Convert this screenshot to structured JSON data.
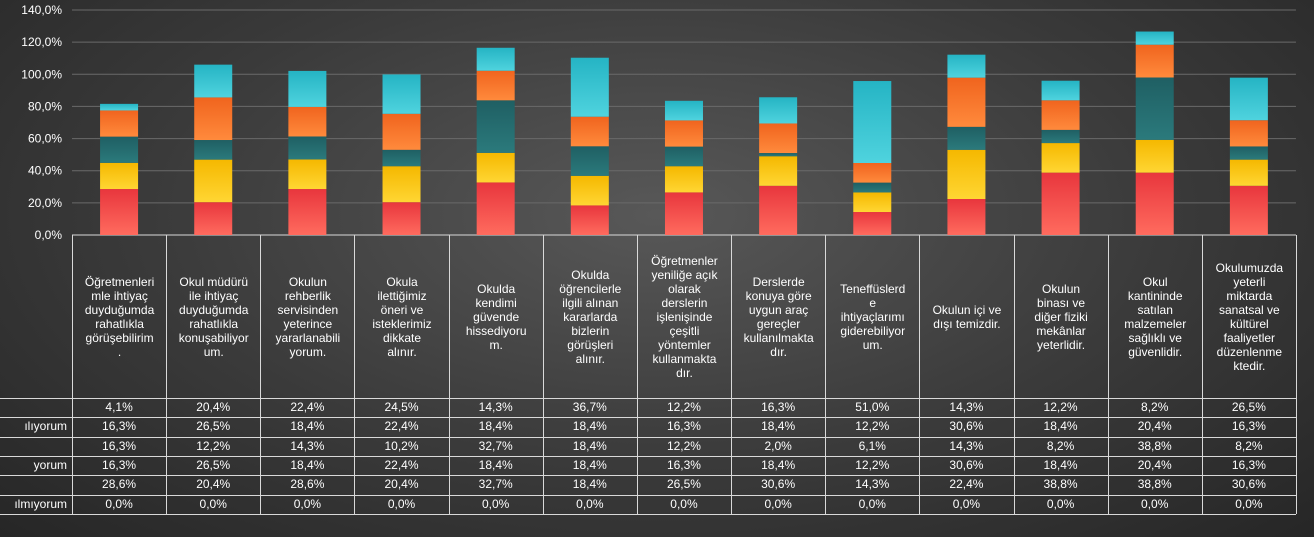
{
  "chart_data": {
    "type": "bar",
    "stacked": true,
    "ylim": [
      0,
      140
    ],
    "yticks": [
      "0,0%",
      "20,0%",
      "40,0%",
      "60,0%",
      "80,0%",
      "100,0%",
      "120,0%",
      "140,0%"
    ],
    "categories": [
      "Öğretmenlerimle ihtiyaç duyduğumda rahatlıkla görüşebilirim.",
      "Okul müdürü ile ihtiyaç duyduğumda rahatlıkla konuşabiliyorum.",
      "Okulun rehberlik servisinden yeterince yararlanabiliyorum.",
      "Okula ilettiğimiz öneri ve isteklerimiz dikkate alınır.",
      "Okulda kendimi güvende hissediyorum.",
      "Okulda öğrencilerle ilgili alınan kararlarda bizlerin görüşleri alınır.",
      "Öğretmenler yeniliğe açık olarak derslerin işlenişinde çeşitli yöntemler kullanmaktadır.",
      "Derslerde konuya göre uygun araç gereçler kullanılmaktadır.",
      "Teneffüslerde ihtiyaçlarımı giderebiliyorum.",
      "Okulun içi ve dışı temizdir.",
      "Okulun binası ve diğer fiziki mekânlar yeterlidir.",
      "Okul kantininde satılan malzemeler sağlıklı ve güvenlidir.",
      "Okulumuzda yeterli miktarda sanatsal ve kültürel faaliyetler düzenlenmektedir."
    ],
    "category_lines": [
      [
        "Öğretmenleri",
        "mle ihtiyaç",
        "duyduğumda",
        "rahatlıkla",
        "görüşebilirim",
        "."
      ],
      [
        "Okul müdürü",
        "ile ihtiyaç",
        "duyduğumda",
        "rahatlıkla",
        "konuşabiliyor",
        "um."
      ],
      [
        "Okulun",
        "rehberlik",
        "servisinden",
        "yeterince",
        "yararlanabili",
        "yorum."
      ],
      [
        "Okula",
        "ilettiğimiz",
        "öneri ve",
        "isteklerimiz",
        "dikkate",
        "alınır."
      ],
      [
        "Okulda",
        "kendimi",
        "güvende",
        "hissediyoru",
        "m."
      ],
      [
        "Okulda",
        "öğrencilerle",
        "ilgili alınan",
        "kararlarda",
        "bizlerin",
        "görüşleri",
        "alınır."
      ],
      [
        "Öğretmenler",
        "yeniliğe açık",
        "olarak",
        "derslerin",
        "işlenişinde",
        "çeşitli",
        "yöntemler",
        "kullanmakta",
        "dır."
      ],
      [
        "Derslerde",
        "konuya göre",
        "uygun araç",
        "gereçler",
        "kullanılmakta",
        "dır."
      ],
      [
        "Teneffüslerd",
        "e",
        "ihtiyaçlarımı",
        "giderebiliyor",
        "um."
      ],
      [
        "Okulun içi ve",
        "dışı temizdir."
      ],
      [
        "Okulun",
        "binası ve",
        "diğer fiziki",
        "mekânlar",
        "yeterlidir."
      ],
      [
        "Okul",
        "kantininde",
        "satılan",
        "malzemeler",
        "sağlıklı ve",
        "güvenlidir."
      ],
      [
        "Okulumuzda",
        "yeterli",
        "miktarda",
        "sanatsal ve",
        "kültürel",
        "faaliyetler",
        "düzenlenme",
        "ktedir."
      ]
    ],
    "series": [
      {
        "name": "",
        "row_label": "",
        "color": "#e8363d",
        "color_light": "#ff6b5e",
        "values": [
          28.6,
          20.4,
          28.6,
          20.4,
          32.7,
          18.4,
          26.5,
          30.6,
          14.3,
          22.4,
          38.8,
          38.8,
          30.6
        ],
        "labels": [
          "28,6%",
          "20,4%",
          "28,6%",
          "20,4%",
          "32,7%",
          "18,4%",
          "26,5%",
          "30,6%",
          "14,3%",
          "22,4%",
          "38,8%",
          "38,8%",
          "30,6%"
        ]
      },
      {
        "name": "",
        "row_label": "",
        "color": "#f5b800",
        "color_light": "#ffd633",
        "values": [
          16.3,
          26.5,
          18.4,
          22.4,
          18.4,
          18.4,
          16.3,
          18.4,
          12.2,
          30.6,
          18.4,
          20.4,
          16.3
        ],
        "labels": [
          "16,3%",
          "26,5%",
          "18,4%",
          "22,4%",
          "18,4%",
          "18,4%",
          "16,3%",
          "18,4%",
          "12,2%",
          "30,6%",
          "18,4%",
          "20,4%",
          "16,3%"
        ]
      },
      {
        "name": "",
        "row_label": "",
        "color": "#1f5f63",
        "color_light": "#2b7a7c",
        "values": [
          16.3,
          12.2,
          14.3,
          10.2,
          32.7,
          18.4,
          12.2,
          2.0,
          6.1,
          14.3,
          8.2,
          38.8,
          8.2
        ],
        "labels": [
          "16,3%",
          "12,2%",
          "14,3%",
          "10,2%",
          "32,7%",
          "18,4%",
          "12,2%",
          "2,0%",
          "6,1%",
          "14,3%",
          "8,2%",
          "38,8%",
          "8,2%"
        ]
      },
      {
        "name": "",
        "row_label": "",
        "color": "#f0641e",
        "color_light": "#ff8a3c",
        "values": [
          16.3,
          26.5,
          18.4,
          22.4,
          18.4,
          18.4,
          16.3,
          18.4,
          12.2,
          30.6,
          18.4,
          20.4,
          16.3
        ],
        "labels": [
          "16,3%",
          "26,5%",
          "18,4%",
          "22,4%",
          "18,4%",
          "18,4%",
          "16,3%",
          "18,4%",
          "12,2%",
          "30,6%",
          "18,4%",
          "20,4%",
          "16,3%"
        ]
      },
      {
        "name": "",
        "row_label": "",
        "color": "#25b4c4",
        "color_light": "#4fd3de",
        "values": [
          4.1,
          20.4,
          22.4,
          24.5,
          14.3,
          36.7,
          12.2,
          16.3,
          51.0,
          14.3,
          12.2,
          8.2,
          26.5
        ],
        "labels": [
          "4,1%",
          "20,4%",
          "22,4%",
          "24,5%",
          "14,3%",
          "36,7%",
          "12,2%",
          "16,3%",
          "51,0%",
          "14,3%",
          "12,2%",
          "8,2%",
          "26,5%"
        ]
      }
    ],
    "table_rows": [
      {
        "row_label": "",
        "series_index": 4
      },
      {
        "row_label": "ılıyorum",
        "series_index": 3
      },
      {
        "row_label": "",
        "series_index": 2
      },
      {
        "row_label": "yorum",
        "series_index": 1
      },
      {
        "row_label": "",
        "series_index": 0
      },
      {
        "row_label": "ılmıyorum",
        "series_index": null,
        "labels": [
          "0,0%",
          "0,0%",
          "0,0%",
          "0,0%",
          "0,0%",
          "0,0%",
          "0,0%",
          "0,0%",
          "0,0%",
          "0,0%",
          "0,0%",
          "0,0%",
          "0,0%"
        ]
      }
    ],
    "grid": true,
    "legend": "none"
  }
}
